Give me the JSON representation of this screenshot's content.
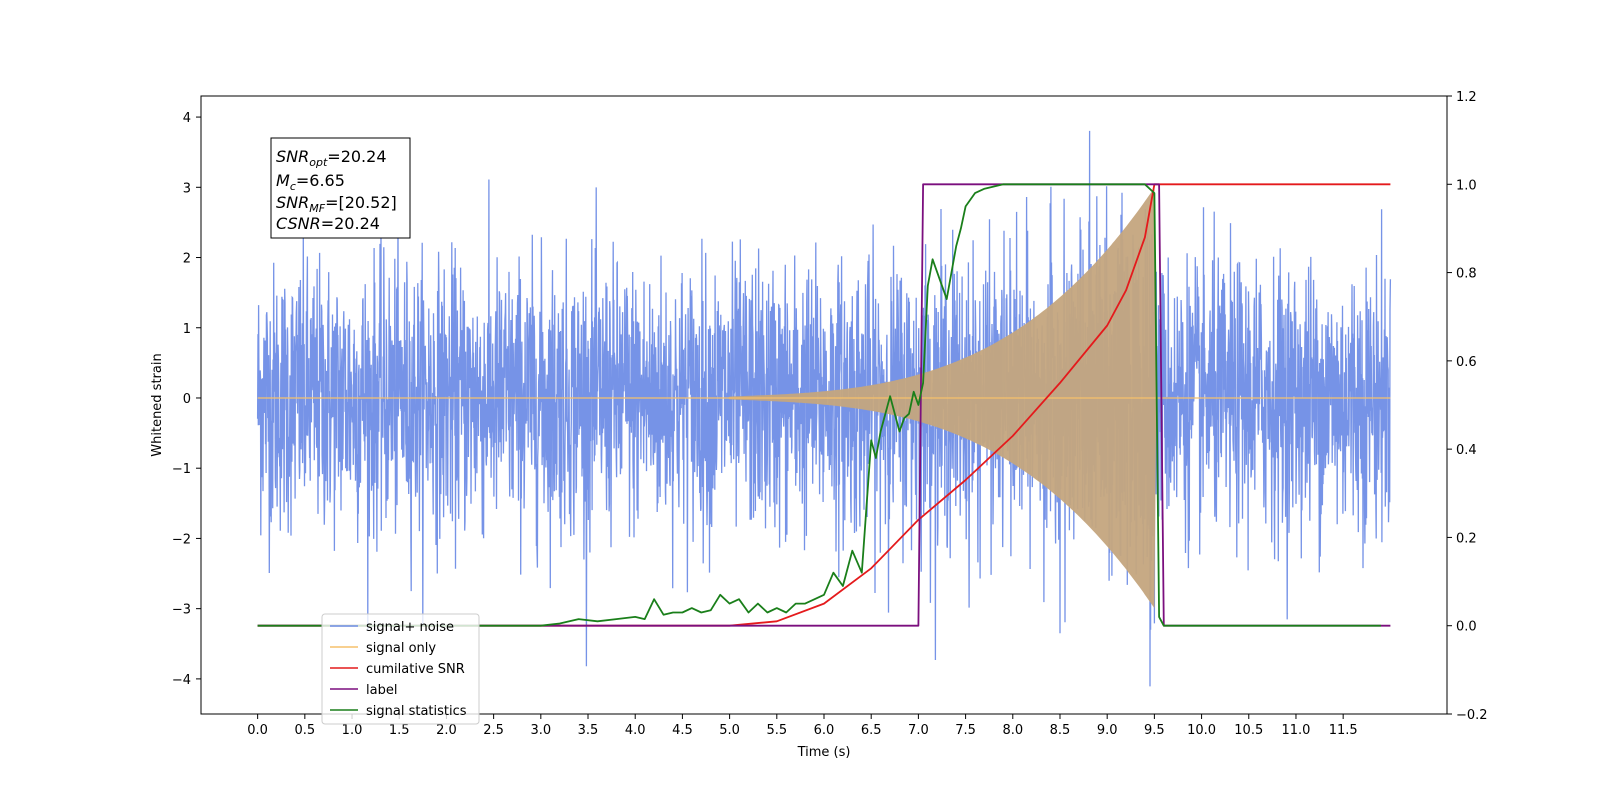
{
  "chart_data": {
    "type": "line",
    "xlabel": "Time (s)",
    "ylabel_left": "Whitened strain",
    "ylabel_right": "",
    "xlim": [
      -0.6,
      12.6
    ],
    "ylim_left": [
      -4.5,
      4.3
    ],
    "ylim_right": [
      -0.2,
      1.2
    ],
    "x_ticks": [
      0.0,
      0.5,
      1.0,
      1.5,
      2.0,
      2.5,
      3.0,
      3.5,
      4.0,
      4.5,
      5.0,
      5.5,
      6.0,
      6.5,
      7.0,
      7.5,
      8.0,
      8.5,
      9.0,
      9.5,
      10.0,
      10.5,
      11.0,
      11.5
    ],
    "x_tick_labels": [
      "0.0",
      "0.5",
      "1.0",
      "1.5",
      "2.0",
      "2.5",
      "3.0",
      "3.5",
      "4.0",
      "4.5",
      "5.0",
      "5.5",
      "6.0",
      "6.5",
      "7.0",
      "7.5",
      "8.0",
      "8.5",
      "9.0",
      "9.5",
      "10.0",
      "10.5",
      "11.0",
      "11.5"
    ],
    "y_ticks_left": [
      -4,
      -3,
      -2,
      -1,
      0,
      1,
      2,
      3,
      4
    ],
    "y_tick_labels_left": [
      "−4",
      "−3",
      "−2",
      "−1",
      "0",
      "1",
      "2",
      "3",
      "4"
    ],
    "y_ticks_right": [
      -0.2,
      0.0,
      0.2,
      0.4,
      0.6,
      0.8,
      1.0,
      1.2
    ],
    "y_tick_labels_right": [
      "−0.2",
      "0.0",
      "0.2",
      "0.4",
      "0.6",
      "0.8",
      "1.0",
      "1.2"
    ],
    "grid": false,
    "legend_position": "lower-left",
    "info_box": {
      "snr_opt_main": "SNR",
      "snr_opt_sub": "opt",
      "snr_opt_value": "=20.24",
      "mc_main": "M",
      "mc_sub": "c",
      "mc_value": "=6.65",
      "snr_mf_main": "SNR",
      "snr_mf_sub": "MF",
      "snr_mf_value": "=[20.52]",
      "csnr_main": "CSNR",
      "csnr_value": "=20.24"
    },
    "series": [
      {
        "name": "signal+ noise",
        "color": "#6f8de6",
        "axis": "left",
        "description": "whitened noise plus signal, time 0.0 to 12.0 s, amplitude mostly within ±2.3 with peaks near ±4",
        "x_range": [
          0.0,
          12.0
        ],
        "envelope": 2.3
      },
      {
        "name": "signal only",
        "color": "#f5c16b",
        "axis": "left",
        "description": "chirp signal, amplitude growing from 0 at 5.0 s to about 3.0 at 9.5 s, then 0",
        "x_range": [
          0.0,
          12.0
        ],
        "chirp_start": 5.0,
        "chirp_end": 9.5,
        "peak_amplitude": 3.05
      },
      {
        "name": "cumilative SNR",
        "color": "#e41a1c",
        "axis": "right",
        "x": [
          0.0,
          4.0,
          5.0,
          5.5,
          6.0,
          6.5,
          7.0,
          7.5,
          8.0,
          8.5,
          9.0,
          9.2,
          9.4,
          9.5,
          9.5,
          12.0
        ],
        "y": [
          0.0,
          0.0,
          0.0,
          0.01,
          0.05,
          0.13,
          0.24,
          0.33,
          0.43,
          0.55,
          0.68,
          0.76,
          0.88,
          1.0,
          1.0,
          1.0
        ]
      },
      {
        "name": "label",
        "color": "#7b0f7e",
        "axis": "right",
        "x": [
          0.0,
          7.0,
          7.05,
          9.55,
          9.6,
          12.0
        ],
        "y": [
          0.0,
          0.0,
          1.0,
          1.0,
          0.0,
          0.0
        ]
      },
      {
        "name": "signal statistics",
        "color": "#1a7f1a",
        "axis": "right",
        "x": [
          0.0,
          3.0,
          3.2,
          3.4,
          3.6,
          3.8,
          4.0,
          4.1,
          4.2,
          4.3,
          4.4,
          4.5,
          4.6,
          4.7,
          4.8,
          4.9,
          5.0,
          5.1,
          5.2,
          5.3,
          5.4,
          5.5,
          5.6,
          5.7,
          5.8,
          5.9,
          6.0,
          6.1,
          6.2,
          6.3,
          6.4,
          6.5,
          6.55,
          6.6,
          6.7,
          6.8,
          6.85,
          6.9,
          6.95,
          7.0,
          7.05,
          7.1,
          7.15,
          7.2,
          7.3,
          7.4,
          7.45,
          7.5,
          7.6,
          7.7,
          7.8,
          7.9,
          8.0,
          8.2,
          8.5,
          9.0,
          9.4,
          9.5,
          9.55,
          9.6,
          9.7,
          11.9
        ],
        "y": [
          0.0,
          0.0,
          0.005,
          0.015,
          0.01,
          0.015,
          0.02,
          0.015,
          0.06,
          0.025,
          0.03,
          0.03,
          0.04,
          0.03,
          0.035,
          0.07,
          0.05,
          0.06,
          0.03,
          0.05,
          0.03,
          0.04,
          0.03,
          0.05,
          0.05,
          0.06,
          0.07,
          0.12,
          0.09,
          0.17,
          0.12,
          0.42,
          0.38,
          0.44,
          0.52,
          0.44,
          0.47,
          0.48,
          0.53,
          0.5,
          0.55,
          0.77,
          0.83,
          0.8,
          0.74,
          0.86,
          0.9,
          0.95,
          0.98,
          0.99,
          0.995,
          1.0,
          1.0,
          1.0,
          1.0,
          1.0,
          1.0,
          0.98,
          0.02,
          0.0,
          0.0,
          0.0
        ]
      }
    ]
  }
}
